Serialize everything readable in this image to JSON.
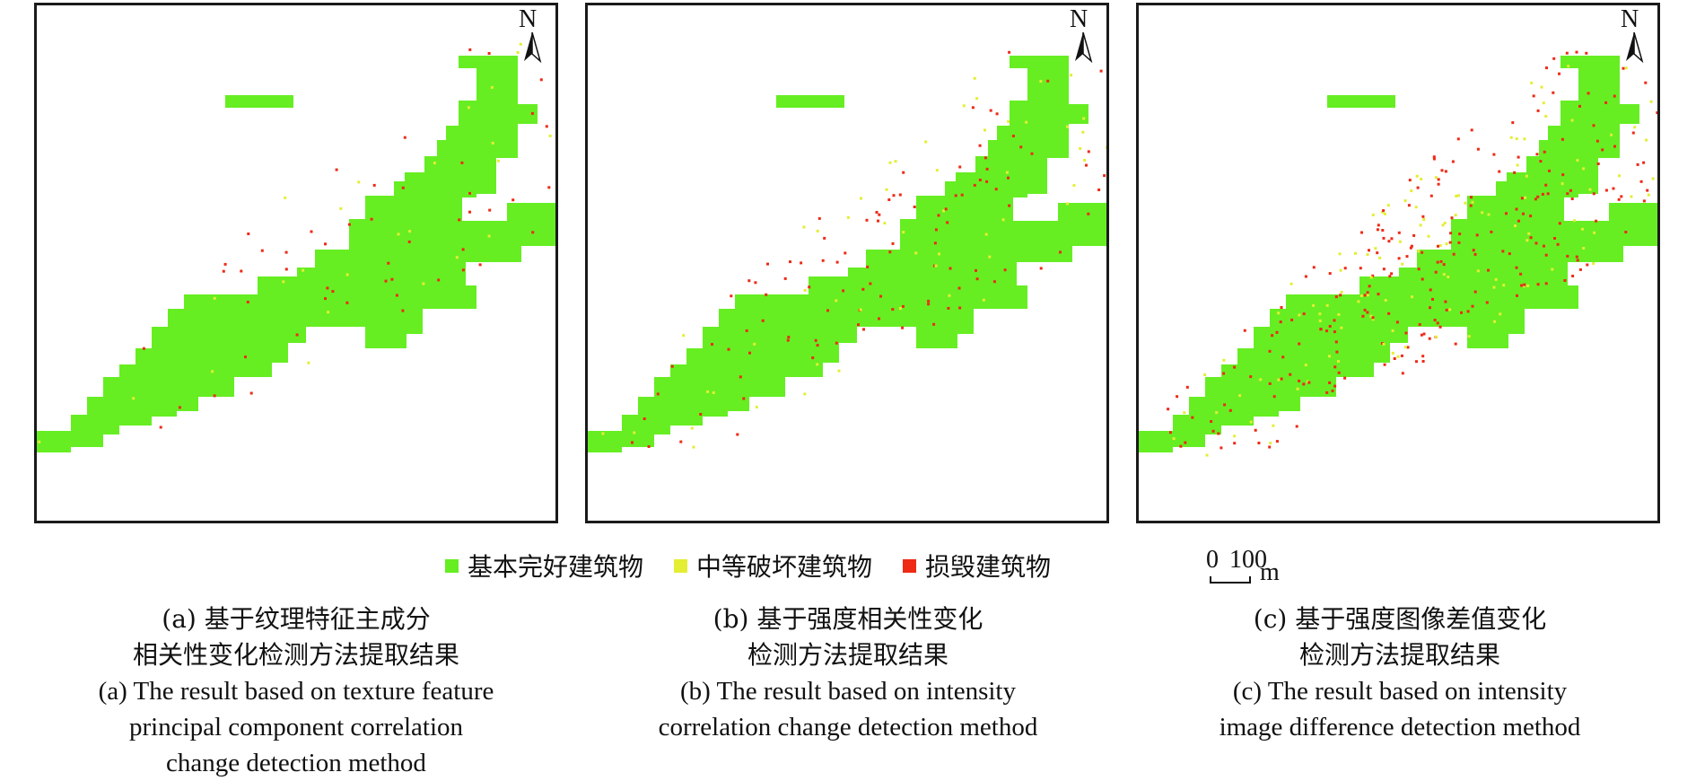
{
  "north_label": "N",
  "colors": {
    "intact": "#66ee22",
    "moderate": "#e4ee33",
    "destroyed": "#ee2a16",
    "frame": "#1a1a1a"
  },
  "panels": [
    {
      "id": "a",
      "damage_density": "low"
    },
    {
      "id": "b",
      "damage_density": "medium"
    },
    {
      "id": "c",
      "damage_density": "high"
    }
  ],
  "legend": {
    "items": [
      {
        "label": "基本完好建筑物",
        "color": "#66ee22"
      },
      {
        "label": "中等破坏建筑物",
        "color": "#e4ee33"
      },
      {
        "label": "损毁建筑物",
        "color": "#ee2a16"
      }
    ]
  },
  "scalebar": {
    "start": "0",
    "end": "100",
    "unit": "m"
  },
  "captions": {
    "a": {
      "zh1": "(a) 基于纹理特征主成分",
      "zh2": "相关性变化检测方法提取结果",
      "en1": "(a) The result based on texture feature",
      "en2": "principal component correlation",
      "en3": "change detection method"
    },
    "b": {
      "zh1": "(b) 基于强度相关性变化",
      "zh2": "检测方法提取结果",
      "en1": "(b) The result based on intensity",
      "en2": "correlation change detection method"
    },
    "c": {
      "zh1": "(c) 基于强度图像差值变化",
      "zh2": "检测方法提取结果",
      "en1": "(c) The result based on intensity",
      "en2": "image difference detection method"
    }
  }
}
